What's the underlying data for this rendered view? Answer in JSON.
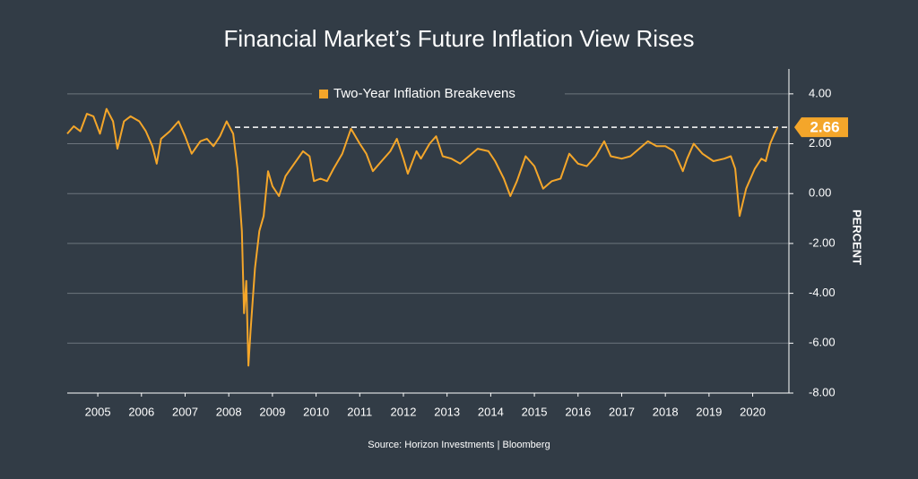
{
  "chart_data": {
    "type": "line",
    "title": "Financial Market’s Future Inflation View Rises",
    "source": "Source: Horizon Investments | Bloomberg",
    "y_axis_label": "PERCENT",
    "annotation": 2.66,
    "xlim": [
      2004.8,
      2021.33
    ],
    "ylim": [
      -8,
      5
    ],
    "xticks": [
      {
        "value": 2005.5,
        "label": "2005"
      },
      {
        "value": 2006.5,
        "label": "2006"
      },
      {
        "value": 2007.5,
        "label": "2007"
      },
      {
        "value": 2008.5,
        "label": "2008"
      },
      {
        "value": 2009.5,
        "label": "2009"
      },
      {
        "value": 2010.5,
        "label": "2010"
      },
      {
        "value": 2011.5,
        "label": "2011"
      },
      {
        "value": 2012.5,
        "label": "2012"
      },
      {
        "value": 2013.5,
        "label": "2013"
      },
      {
        "value": 2014.5,
        "label": "2014"
      },
      {
        "value": 2015.5,
        "label": "2015"
      },
      {
        "value": 2016.5,
        "label": "2016"
      },
      {
        "value": 2017.5,
        "label": "2017"
      },
      {
        "value": 2018.5,
        "label": "2018"
      },
      {
        "value": 2019.5,
        "label": "2019"
      },
      {
        "value": 2020.5,
        "label": "2020"
      }
    ],
    "yticks": [
      {
        "value": 4,
        "label": "4.00"
      },
      {
        "value": 2,
        "label": "2.00"
      },
      {
        "value": 0,
        "label": "0.00"
      },
      {
        "value": -2,
        "label": "-2.00"
      },
      {
        "value": -4,
        "label": "-4.00"
      },
      {
        "value": -6,
        "label": "-6.00"
      },
      {
        "value": -8,
        "label": "-8.00"
      }
    ],
    "grid": true,
    "legend": "top",
    "series": [
      {
        "name": "Two-Year Inflation Breakevens",
        "color": "#f4a62a",
        "x": [
          2004.8,
          2004.95,
          2005.1,
          2005.25,
          2005.4,
          2005.55,
          2005.7,
          2005.85,
          2005.95,
          2006.1,
          2006.25,
          2006.45,
          2006.6,
          2006.75,
          2006.85,
          2006.95,
          2007.15,
          2007.35,
          2007.5,
          2007.65,
          2007.85,
          2008.0,
          2008.15,
          2008.3,
          2008.45,
          2008.6,
          2008.7,
          2008.8,
          2008.85,
          2008.9,
          2008.95,
          2009.0,
          2009.1,
          2009.2,
          2009.3,
          2009.4,
          2009.5,
          2009.65,
          2009.8,
          2010.0,
          2010.2,
          2010.35,
          2010.45,
          2010.6,
          2010.75,
          2010.9,
          2011.1,
          2011.3,
          2011.5,
          2011.65,
          2011.8,
          2012.0,
          2012.2,
          2012.35,
          2012.5,
          2012.6,
          2012.8,
          2012.9,
          2013.1,
          2013.25,
          2013.4,
          2013.6,
          2013.8,
          2014.0,
          2014.2,
          2014.45,
          2014.6,
          2014.8,
          2014.95,
          2015.1,
          2015.3,
          2015.5,
          2015.7,
          2015.9,
          2016.1,
          2016.3,
          2016.5,
          2016.7,
          2016.9,
          2017.1,
          2017.25,
          2017.5,
          2017.7,
          2017.9,
          2018.1,
          2018.3,
          2018.5,
          2018.7,
          2018.9,
          2019.0,
          2019.15,
          2019.35,
          2019.6,
          2019.85,
          2020.0,
          2020.1,
          2020.2,
          2020.35,
          2020.55,
          2020.7,
          2020.8,
          2020.9,
          2021.0,
          2021.07
        ],
        "values": [
          2.4,
          2.7,
          2.5,
          3.2,
          3.1,
          2.4,
          3.4,
          2.9,
          1.8,
          2.9,
          3.1,
          2.9,
          2.5,
          1.9,
          1.2,
          2.2,
          2.5,
          2.9,
          2.3,
          1.6,
          2.1,
          2.2,
          1.9,
          2.3,
          2.9,
          2.4,
          1.0,
          -1.5,
          -4.8,
          -3.5,
          -6.9,
          -5.5,
          -3.0,
          -1.5,
          -0.9,
          0.9,
          0.3,
          -0.1,
          0.7,
          1.2,
          1.7,
          1.5,
          0.5,
          0.6,
          0.5,
          1.0,
          1.6,
          2.6,
          2.0,
          1.6,
          0.9,
          1.3,
          1.7,
          2.2,
          1.4,
          0.8,
          1.7,
          1.4,
          2.0,
          2.3,
          1.5,
          1.4,
          1.2,
          1.5,
          1.8,
          1.7,
          1.3,
          0.6,
          -0.1,
          0.5,
          1.5,
          1.1,
          0.2,
          0.5,
          0.6,
          1.6,
          1.2,
          1.1,
          1.5,
          2.1,
          1.5,
          1.4,
          1.5,
          1.8,
          2.1,
          1.9,
          1.9,
          1.7,
          0.9,
          1.4,
          2.0,
          1.6,
          1.3,
          1.4,
          1.5,
          1.0,
          -0.9,
          0.2,
          1.0,
          1.4,
          1.3,
          2.0,
          2.4,
          2.66
        ]
      }
    ]
  }
}
